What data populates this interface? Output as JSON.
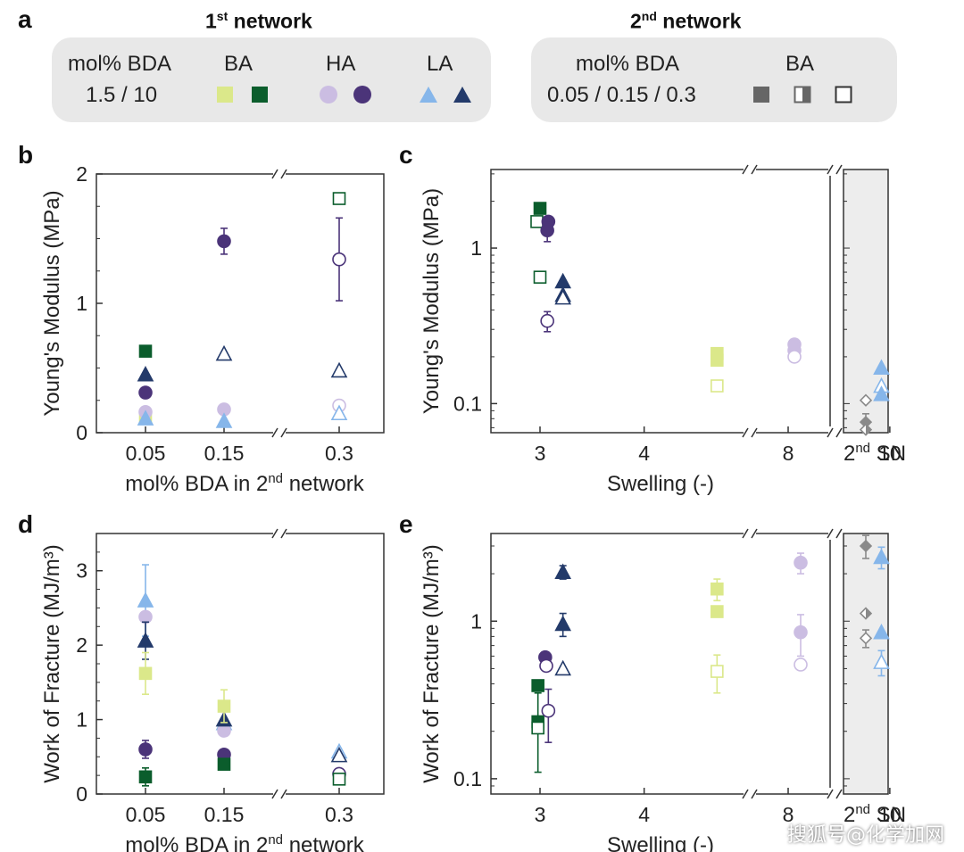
{
  "panel_labels": {
    "a": "a",
    "b": "b",
    "c": "c",
    "d": "d",
    "e": "e"
  },
  "legend": {
    "first": {
      "title_main": "1",
      "title_sup": "st",
      "title_rest": " network",
      "mol_label": "mol% BDA",
      "mol_values": "1.5 / 10",
      "groups": [
        {
          "name": "BA",
          "light": "#dbe88a",
          "dark": "#0b5d2c",
          "shape": "square"
        },
        {
          "name": "HA",
          "light": "#cbbde2",
          "dark": "#4b3479",
          "shape": "circle"
        },
        {
          "name": "LA",
          "light": "#86b6ea",
          "dark": "#233a6a",
          "shape": "triangle"
        }
      ]
    },
    "second": {
      "title_main": "2",
      "title_sup": "nd",
      "title_rest": " network",
      "mol_label": "mol% BDA",
      "mol_values": "0.05 / 0.15 / 0.3",
      "group": "BA",
      "color": "#666666"
    }
  },
  "colors": {
    "BA_light": "#dbe88a",
    "BA_dark": "#0b5d2c",
    "HA_light": "#cbbde2",
    "HA_dark": "#4b3479",
    "LA_light": "#86b6ea",
    "LA_dark": "#233a6a",
    "SN": "#8a8a8a",
    "SN_bg": "#ededed"
  },
  "watermark": "搜狐号@化学加网",
  "chart_data": [
    {
      "id": "b",
      "type": "scatter",
      "ylabel": "Young's Modulus (MPa)",
      "xlabel_main": "mol% BDA in 2",
      "xlabel_sup": "nd",
      "xlabel_rest": " network",
      "categories": [
        "0.05",
        "0.15",
        "0.3"
      ],
      "ylim": [
        0,
        2
      ],
      "yticks": [
        0,
        1,
        2
      ],
      "series": [
        {
          "key": "BA_dark",
          "marker": "square",
          "fill": "filled",
          "values": [
            0.63,
            null,
            null
          ]
        },
        {
          "key": "BA_light",
          "marker": "square",
          "fill": "filled",
          "values": [
            0.12,
            null,
            null
          ]
        },
        {
          "key": "BA_dark",
          "marker": "square",
          "fill": "open",
          "values": [
            null,
            null,
            1.81
          ]
        },
        {
          "key": "HA_dark",
          "marker": "circle",
          "fill": "filled",
          "values": [
            0.31,
            1.48,
            null
          ],
          "err": [
            0.04,
            0.1,
            null
          ]
        },
        {
          "key": "HA_dark",
          "marker": "circle",
          "fill": "open",
          "values": [
            null,
            null,
            1.34
          ],
          "err": [
            null,
            null,
            0.32
          ]
        },
        {
          "key": "HA_light",
          "marker": "circle",
          "fill": "filled",
          "values": [
            0.16,
            0.18,
            null
          ]
        },
        {
          "key": "HA_light",
          "marker": "circle",
          "fill": "open",
          "values": [
            null,
            null,
            0.21
          ]
        },
        {
          "key": "LA_dark",
          "marker": "triangle",
          "fill": "filled",
          "values": [
            0.45,
            null,
            null
          ]
        },
        {
          "key": "LA_dark",
          "marker": "triangle",
          "fill": "open",
          "values": [
            null,
            0.61,
            0.48
          ]
        },
        {
          "key": "LA_light",
          "marker": "triangle",
          "fill": "filled",
          "values": [
            0.11,
            0.09,
            null
          ]
        },
        {
          "key": "LA_light",
          "marker": "triangle",
          "fill": "open",
          "values": [
            null,
            null,
            0.15
          ]
        }
      ]
    },
    {
      "id": "c",
      "type": "scatter",
      "ylabel": "Young's Modulus (MPa)",
      "xlabel": "Swelling (-)",
      "yscale": "log",
      "ylim": [
        0.065,
        3.2
      ],
      "yticks": [
        0.1,
        1
      ],
      "ytick_labels": [
        "0.1",
        "1"
      ],
      "xticks": [
        "3",
        "4",
        "8",
        "10"
      ],
      "sn_label_main": "2",
      "sn_label_sup": "nd",
      "sn_label_rest": " SN",
      "points": [
        {
          "key": "BA_dark",
          "marker": "square",
          "fill": "filled",
          "x": 3.0,
          "y": 1.8
        },
        {
          "key": "BA_dark",
          "marker": "square",
          "fill": "open",
          "x": 2.97,
          "y": 1.48
        },
        {
          "key": "BA_dark",
          "marker": "square",
          "fill": "open",
          "x": 3.0,
          "y": 0.65
        },
        {
          "key": "HA_dark",
          "marker": "circle",
          "fill": "filled",
          "x": 3.08,
          "y": 1.48
        },
        {
          "key": "HA_dark",
          "marker": "circle",
          "fill": "filled",
          "x": 3.07,
          "y": 1.3,
          "err": 0.2
        },
        {
          "key": "HA_dark",
          "marker": "circle",
          "fill": "open",
          "x": 3.07,
          "y": 0.34,
          "err": 0.05
        },
        {
          "key": "LA_dark",
          "marker": "triangle",
          "fill": "filled",
          "x": 3.22,
          "y": 0.61
        },
        {
          "key": "LA_dark",
          "marker": "triangle",
          "fill": "filled",
          "x": 3.22,
          "y": 0.5
        },
        {
          "key": "LA_dark",
          "marker": "triangle",
          "fill": "open",
          "x": 3.22,
          "y": 0.48
        },
        {
          "key": "BA_light",
          "marker": "square",
          "fill": "filled",
          "x": 4.7,
          "y": 0.21
        },
        {
          "key": "BA_light",
          "marker": "square",
          "fill": "filled",
          "x": 4.7,
          "y": 0.19
        },
        {
          "key": "BA_light",
          "marker": "square",
          "fill": "open",
          "x": 4.7,
          "y": 0.13
        },
        {
          "key": "HA_light",
          "marker": "circle",
          "fill": "filled",
          "x": 8.1,
          "y": 0.24
        },
        {
          "key": "HA_light",
          "marker": "circle",
          "fill": "filled",
          "x": 8.1,
          "y": 0.22
        },
        {
          "key": "HA_light",
          "marker": "circle",
          "fill": "open",
          "x": 8.1,
          "y": 0.2
        },
        {
          "key": "LA_light",
          "marker": "triangle",
          "fill": "filled",
          "x": 9.9,
          "y": 0.17
        },
        {
          "key": "LA_light",
          "marker": "triangle",
          "fill": "open",
          "x": 9.9,
          "y": 0.13
        },
        {
          "key": "LA_light",
          "marker": "triangle",
          "fill": "filled",
          "x": 9.9,
          "y": 0.115
        }
      ],
      "sn_points": [
        {
          "fill": "open",
          "y": 0.105
        },
        {
          "fill": "filled",
          "y": 0.076,
          "err": 0.01
        },
        {
          "fill": "half",
          "y": 0.068
        }
      ]
    },
    {
      "id": "d",
      "type": "scatter",
      "ylabel": "Work of Fracture (MJ/m³)",
      "xlabel_main": "mol% BDA in 2",
      "xlabel_sup": "nd",
      "xlabel_rest": " network",
      "categories": [
        "0.05",
        "0.15",
        "0.3"
      ],
      "ylim": [
        0,
        3.5
      ],
      "yticks": [
        0,
        1,
        2,
        3
      ],
      "series": [
        {
          "key": "LA_light",
          "marker": "triangle",
          "fill": "filled",
          "values": [
            2.6,
            0.95,
            null
          ],
          "err": [
            0.48,
            null,
            null
          ]
        },
        {
          "key": "HA_light",
          "marker": "circle",
          "fill": "filled",
          "values": [
            2.38,
            0.85,
            null
          ]
        },
        {
          "key": "LA_dark",
          "marker": "triangle",
          "fill": "filled",
          "values": [
            2.06,
            1.0,
            null
          ],
          "err": [
            0.25,
            null,
            null
          ]
        },
        {
          "key": "BA_light",
          "marker": "square",
          "fill": "filled",
          "values": [
            1.62,
            1.18,
            null
          ],
          "err": [
            0.28,
            0.22,
            null
          ]
        },
        {
          "key": "HA_dark",
          "marker": "circle",
          "fill": "filled",
          "values": [
            0.6,
            0.53,
            null
          ],
          "err": [
            0.12,
            null,
            null
          ]
        },
        {
          "key": "BA_dark",
          "marker": "square",
          "fill": "filled",
          "values": [
            0.23,
            0.4,
            null
          ],
          "err": [
            0.12,
            null,
            null
          ]
        },
        {
          "key": "LA_light",
          "marker": "triangle",
          "fill": "open",
          "values": [
            null,
            null,
            0.57
          ]
        },
        {
          "key": "LA_dark",
          "marker": "triangle",
          "fill": "open",
          "values": [
            null,
            null,
            0.52
          ]
        },
        {
          "key": "HA_dark",
          "marker": "circle",
          "fill": "open",
          "values": [
            null,
            null,
            0.27
          ]
        },
        {
          "key": "BA_dark",
          "marker": "square",
          "fill": "open",
          "values": [
            null,
            null,
            0.2
          ]
        }
      ]
    },
    {
      "id": "e",
      "type": "scatter",
      "ylabel": "Work of Fracture (MJ/m³)",
      "xlabel": "Swelling (-)",
      "yscale": "log",
      "ylim": [
        0.08,
        3.6
      ],
      "yticks": [
        0.1,
        1
      ],
      "ytick_labels": [
        "0.1",
        "1"
      ],
      "xticks": [
        "3",
        "4",
        "8",
        "10"
      ],
      "sn_label_main": "2",
      "sn_label_sup": "nd",
      "sn_label_rest": " SN",
      "points": [
        {
          "key": "BA_dark",
          "marker": "square",
          "fill": "filled",
          "x": 2.98,
          "y": 0.39
        },
        {
          "key": "BA_dark",
          "marker": "square",
          "fill": "filled",
          "x": 2.98,
          "y": 0.23,
          "err": 0.12
        },
        {
          "key": "BA_dark",
          "marker": "square",
          "fill": "open",
          "x": 2.98,
          "y": 0.21
        },
        {
          "key": "HA_dark",
          "marker": "circle",
          "fill": "filled",
          "x": 3.05,
          "y": 0.59
        },
        {
          "key": "HA_dark",
          "marker": "circle",
          "fill": "open",
          "x": 3.06,
          "y": 0.52
        },
        {
          "key": "HA_dark",
          "marker": "circle",
          "fill": "open",
          "x": 3.08,
          "y": 0.27,
          "err": 0.1
        },
        {
          "key": "LA_dark",
          "marker": "triangle",
          "fill": "filled",
          "x": 3.22,
          "y": 2.05,
          "err": 0.2
        },
        {
          "key": "LA_dark",
          "marker": "triangle",
          "fill": "filled",
          "x": 3.22,
          "y": 0.96,
          "err": 0.16
        },
        {
          "key": "LA_dark",
          "marker": "triangle",
          "fill": "open",
          "x": 3.22,
          "y": 0.5
        },
        {
          "key": "BA_light",
          "marker": "square",
          "fill": "filled",
          "x": 4.7,
          "y": 1.6,
          "err": 0.25
        },
        {
          "key": "BA_light",
          "marker": "square",
          "fill": "filled",
          "x": 4.7,
          "y": 1.15
        },
        {
          "key": "BA_light",
          "marker": "square",
          "fill": "open",
          "x": 4.7,
          "y": 0.48,
          "err": 0.13
        },
        {
          "key": "HA_light",
          "marker": "circle",
          "fill": "filled",
          "x": 8.2,
          "y": 2.35,
          "err": 0.35
        },
        {
          "key": "HA_light",
          "marker": "circle",
          "fill": "filled",
          "x": 8.2,
          "y": 0.85,
          "err": 0.25
        },
        {
          "key": "HA_light",
          "marker": "circle",
          "fill": "open",
          "x": 8.2,
          "y": 0.53
        },
        {
          "key": "LA_light",
          "marker": "triangle",
          "fill": "filled",
          "x": 9.9,
          "y": 2.55,
          "err": 0.4
        },
        {
          "key": "LA_light",
          "marker": "triangle",
          "fill": "filled",
          "x": 9.9,
          "y": 0.85
        },
        {
          "key": "LA_light",
          "marker": "triangle",
          "fill": "open",
          "x": 9.9,
          "y": 0.55,
          "err": 0.1
        }
      ],
      "sn_points": [
        {
          "fill": "filled",
          "y": 3.0,
          "err": 0.5
        },
        {
          "fill": "half",
          "y": 1.12
        },
        {
          "fill": "open",
          "y": 0.78,
          "err": 0.1
        }
      ]
    }
  ]
}
